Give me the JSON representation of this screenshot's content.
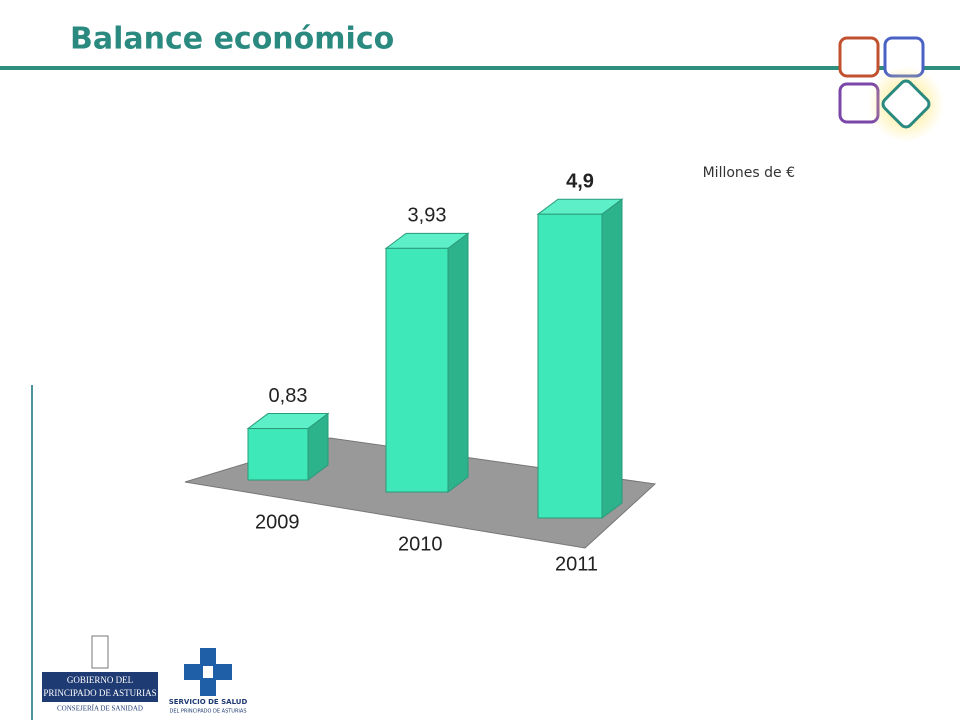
{
  "chart_data": {
    "type": "bar3d",
    "title": "Balance económico",
    "unit_label": "Millones de €",
    "categories": [
      "2009",
      "2010",
      "2011"
    ],
    "values": [
      0.83,
      3.93,
      4.9
    ],
    "value_labels": [
      "0,83",
      "3,93",
      "4,9"
    ],
    "color": "#3ee8b8"
  },
  "logos": {
    "gobierno": [
      "GOBIERNO DEL",
      "PRINCIPADO DE ASTURIAS",
      "CONSEJERÍA DE SANIDAD"
    ],
    "servicio": [
      "SERVICIO DE SALUD",
      "DEL PRINCIPADO DE ASTURIAS"
    ]
  }
}
